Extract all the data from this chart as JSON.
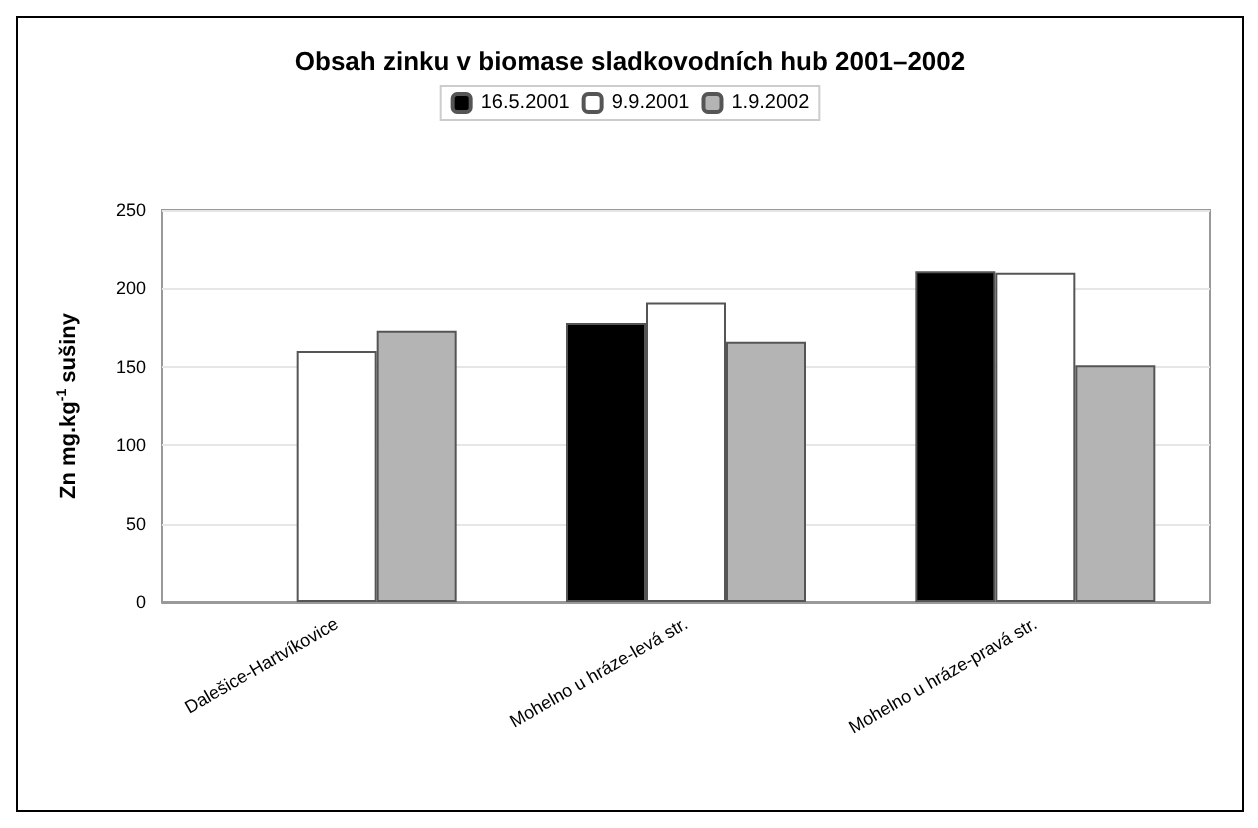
{
  "chart_data": {
    "type": "bar",
    "title": "Obsah zinku v biomase sladkovodních hub 2001–2002",
    "ylabel": "Zn mg.kg$^{-1}$ sušiny",
    "categories": [
      "Dalešice-Hartvíkovice",
      "Mohelno u hráze-levá str.",
      "Mohelno u hráze-pravá str."
    ],
    "series": [
      {
        "name": "16.5.2001",
        "color": "#000000",
        "values": [
          null,
          178,
          211
        ]
      },
      {
        "name": "9.9.2001",
        "color": "#ffffff",
        "values": [
          160,
          191,
          210
        ]
      },
      {
        "name": "1.9.2002",
        "color": "#b4b4b4",
        "values": [
          173,
          166,
          151
        ]
      }
    ],
    "ylim": [
      0,
      250
    ],
    "yticks": [
      0,
      50,
      100,
      150,
      200,
      250
    ],
    "grid": "y",
    "legend": "top"
  }
}
